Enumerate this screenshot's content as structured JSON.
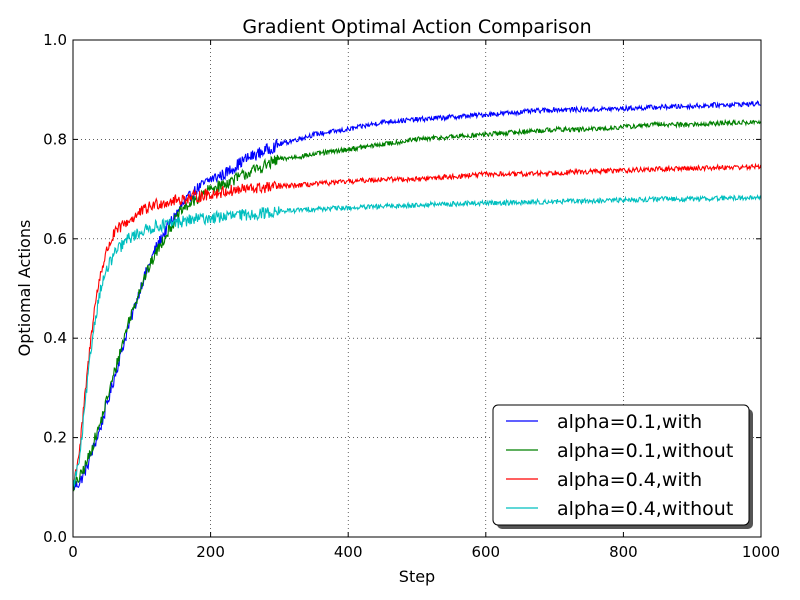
{
  "chart_data": {
    "type": "line",
    "title": "Gradient Optimal Action Comparison",
    "xlabel": "Step",
    "ylabel": "Optiomal Actions",
    "xlim": [
      0,
      1000
    ],
    "ylim": [
      0.0,
      1.0
    ],
    "xticks": [
      "0",
      "200",
      "400",
      "600",
      "800",
      "1000"
    ],
    "yticks": [
      "0.0",
      "0.2",
      "0.4",
      "0.6",
      "0.8",
      "1.0"
    ],
    "grid": true,
    "legend_position": "lower-right",
    "x": [
      0,
      10,
      20,
      30,
      40,
      50,
      60,
      70,
      80,
      100,
      120,
      140,
      160,
      180,
      200,
      220,
      250,
      300,
      350,
      400,
      450,
      500,
      550,
      600,
      650,
      700,
      750,
      800,
      850,
      900,
      950,
      1000
    ],
    "series": [
      {
        "name": "alpha=0.1,with",
        "color": "#0000ff",
        "values": [
          0.1,
          0.11,
          0.14,
          0.18,
          0.22,
          0.27,
          0.32,
          0.37,
          0.42,
          0.51,
          0.58,
          0.63,
          0.67,
          0.7,
          0.72,
          0.73,
          0.76,
          0.79,
          0.81,
          0.82,
          0.835,
          0.84,
          0.845,
          0.85,
          0.855,
          0.86,
          0.86,
          0.862,
          0.865,
          0.867,
          0.87,
          0.872
        ]
      },
      {
        "name": "alpha=0.1,without",
        "color": "#008000",
        "values": [
          0.1,
          0.12,
          0.15,
          0.19,
          0.23,
          0.28,
          0.33,
          0.38,
          0.43,
          0.51,
          0.57,
          0.62,
          0.66,
          0.68,
          0.7,
          0.71,
          0.73,
          0.76,
          0.77,
          0.78,
          0.79,
          0.8,
          0.805,
          0.81,
          0.815,
          0.82,
          0.82,
          0.825,
          0.83,
          0.83,
          0.833,
          0.835
        ]
      },
      {
        "name": "alpha=0.4,with",
        "color": "#ff0000",
        "values": [
          0.1,
          0.18,
          0.32,
          0.45,
          0.53,
          0.58,
          0.61,
          0.625,
          0.635,
          0.655,
          0.67,
          0.675,
          0.68,
          0.685,
          0.69,
          0.695,
          0.7,
          0.705,
          0.71,
          0.715,
          0.72,
          0.72,
          0.725,
          0.73,
          0.73,
          0.733,
          0.735,
          0.738,
          0.74,
          0.742,
          0.744,
          0.745
        ]
      },
      {
        "name": "alpha=0.4,without",
        "color": "#00bfbf",
        "values": [
          0.1,
          0.16,
          0.3,
          0.42,
          0.5,
          0.54,
          0.57,
          0.585,
          0.6,
          0.615,
          0.625,
          0.63,
          0.635,
          0.64,
          0.642,
          0.645,
          0.648,
          0.655,
          0.66,
          0.662,
          0.665,
          0.668,
          0.67,
          0.672,
          0.673,
          0.675,
          0.676,
          0.678,
          0.68,
          0.68,
          0.682,
          0.683
        ]
      }
    ]
  }
}
